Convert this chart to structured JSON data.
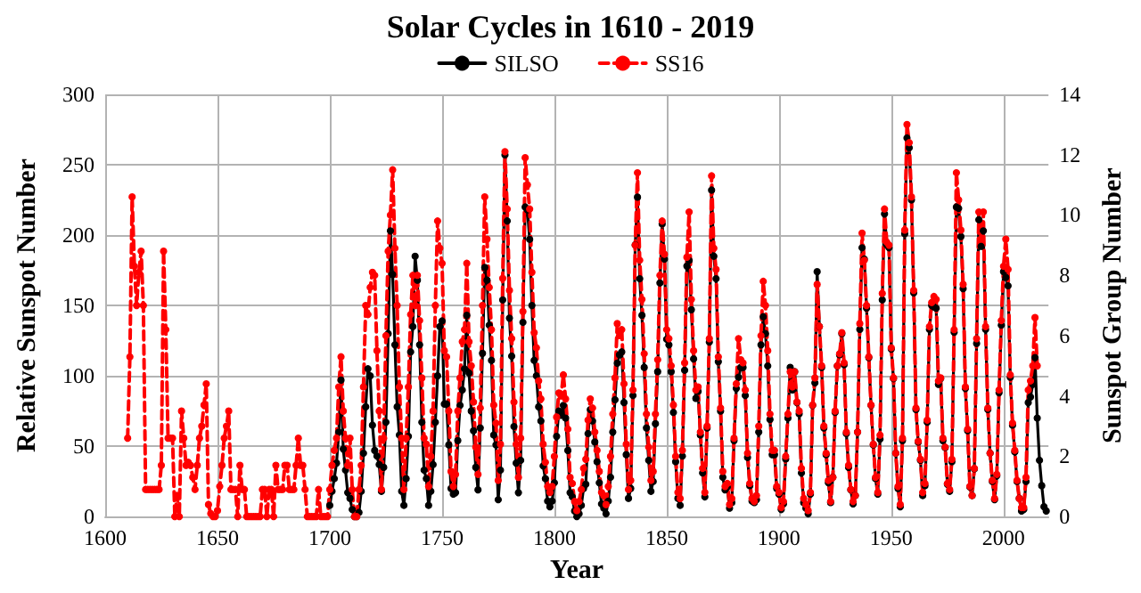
{
  "chart_data": {
    "type": "line",
    "title": "Solar Cycles in 1610 - 2019",
    "xlabel": "Year",
    "ylabel": "Relative Sunspot Number",
    "y2label": "Sunspot Group Number",
    "x": [
      1610,
      1611,
      1612,
      1613,
      1614,
      1615,
      1616,
      1617,
      1618,
      1619,
      1620,
      1621,
      1622,
      1623,
      1624,
      1625,
      1626,
      1627,
      1628,
      1629,
      1630,
      1631,
      1632,
      1633,
      1634,
      1635,
      1636,
      1637,
      1638,
      1639,
      1640,
      1641,
      1642,
      1643,
      1644,
      1645,
      1646,
      1647,
      1648,
      1649,
      1650,
      1651,
      1652,
      1653,
      1654,
      1655,
      1656,
      1657,
      1658,
      1659,
      1660,
      1661,
      1662,
      1663,
      1664,
      1665,
      1666,
      1667,
      1668,
      1669,
      1670,
      1671,
      1672,
      1673,
      1674,
      1675,
      1676,
      1677,
      1678,
      1679,
      1680,
      1681,
      1682,
      1683,
      1684,
      1685,
      1686,
      1687,
      1688,
      1689,
      1690,
      1691,
      1692,
      1693,
      1694,
      1695,
      1696,
      1697,
      1698,
      1699,
      1700,
      1701,
      1702,
      1703,
      1704,
      1705,
      1706,
      1707,
      1708,
      1709,
      1710,
      1711,
      1712,
      1713,
      1714,
      1715,
      1716,
      1717,
      1718,
      1719,
      1720,
      1721,
      1722,
      1723,
      1724,
      1725,
      1726,
      1727,
      1728,
      1729,
      1730,
      1731,
      1732,
      1733,
      1734,
      1735,
      1736,
      1737,
      1738,
      1739,
      1740,
      1741,
      1742,
      1743,
      1744,
      1745,
      1746,
      1747,
      1748,
      1749,
      1750,
      1751,
      1752,
      1753,
      1754,
      1755,
      1756,
      1757,
      1758,
      1759,
      1760,
      1761,
      1762,
      1763,
      1764,
      1765,
      1766,
      1767,
      1768,
      1769,
      1770,
      1771,
      1772,
      1773,
      1774,
      1775,
      1776,
      1777,
      1778,
      1779,
      1780,
      1781,
      1782,
      1783,
      1784,
      1785,
      1786,
      1787,
      1788,
      1789,
      1790,
      1791,
      1792,
      1793,
      1794,
      1795,
      1796,
      1797,
      1798,
      1799,
      1800,
      1801,
      1802,
      1803,
      1804,
      1805,
      1806,
      1807,
      1808,
      1809,
      1810,
      1811,
      1812,
      1813,
      1814,
      1815,
      1816,
      1817,
      1818,
      1819,
      1820,
      1821,
      1822,
      1823,
      1824,
      1825,
      1826,
      1827,
      1828,
      1829,
      1830,
      1831,
      1832,
      1833,
      1834,
      1835,
      1836,
      1837,
      1838,
      1839,
      1840,
      1841,
      1842,
      1843,
      1844,
      1845,
      1846,
      1847,
      1848,
      1849,
      1850,
      1851,
      1852,
      1853,
      1854,
      1855,
      1856,
      1857,
      1858,
      1859,
      1860,
      1861,
      1862,
      1863,
      1864,
      1865,
      1866,
      1867,
      1868,
      1869,
      1870,
      1871,
      1872,
      1873,
      1874,
      1875,
      1876,
      1877,
      1878,
      1879,
      1880,
      1881,
      1882,
      1883,
      1884,
      1885,
      1886,
      1887,
      1888,
      1889,
      1890,
      1891,
      1892,
      1893,
      1894,
      1895,
      1896,
      1897,
      1898,
      1899,
      1900,
      1901,
      1902,
      1903,
      1904,
      1905,
      1906,
      1907,
      1908,
      1909,
      1910,
      1911,
      1912,
      1913,
      1914,
      1915,
      1916,
      1917,
      1918,
      1919,
      1920,
      1921,
      1922,
      1923,
      1924,
      1925,
      1926,
      1927,
      1928,
      1929,
      1930,
      1931,
      1932,
      1933,
      1934,
      1935,
      1936,
      1937,
      1938,
      1939,
      1940,
      1941,
      1942,
      1943,
      1944,
      1945,
      1946,
      1947,
      1948,
      1949,
      1950,
      1951,
      1952,
      1953,
      1954,
      1955,
      1956,
      1957,
      1958,
      1959,
      1960,
      1961,
      1962,
      1963,
      1964,
      1965,
      1966,
      1967,
      1968,
      1969,
      1970,
      1971,
      1972,
      1973,
      1974,
      1975,
      1976,
      1977,
      1978,
      1979,
      1980,
      1981,
      1982,
      1983,
      1984,
      1985,
      1986,
      1987,
      1988,
      1989,
      1990,
      1991,
      1992,
      1993,
      1994,
      1995,
      1996,
      1997,
      1998,
      1999,
      2000,
      2001,
      2002,
      2003,
      2004,
      2005,
      2006,
      2007,
      2008,
      2009,
      2010,
      2011,
      2012,
      2013,
      2014,
      2015,
      2016,
      2017,
      2018,
      2019
    ],
    "xlim": [
      1600,
      2020
    ],
    "xticks": [
      1600,
      1650,
      1700,
      1750,
      1800,
      1850,
      1900,
      1950,
      2000
    ],
    "ylim": [
      0,
      300
    ],
    "yticks": [
      0,
      50,
      100,
      150,
      200,
      250,
      300
    ],
    "y2lim": [
      0,
      14
    ],
    "y2ticks": [
      0,
      2,
      4,
      6,
      8,
      10,
      12,
      14
    ],
    "grid": true,
    "legend": "top",
    "series": [
      {
        "name": "SILSO",
        "color": "#000000",
        "marker": "circle",
        "line_style": "solid",
        "values": [
          null,
          null,
          null,
          null,
          null,
          null,
          null,
          null,
          null,
          null,
          null,
          null,
          null,
          null,
          null,
          null,
          null,
          null,
          null,
          null,
          null,
          null,
          null,
          null,
          null,
          null,
          null,
          null,
          null,
          null,
          null,
          null,
          null,
          null,
          null,
          null,
          null,
          null,
          null,
          null,
          null,
          null,
          null,
          null,
          null,
          null,
          null,
          null,
          null,
          null,
          null,
          null,
          null,
          null,
          null,
          null,
          null,
          null,
          null,
          null,
          null,
          null,
          null,
          null,
          null,
          null,
          null,
          null,
          null,
          null,
          null,
          null,
          null,
          null,
          null,
          null,
          null,
          null,
          null,
          null,
          null,
          null,
          null,
          null,
          null,
          null,
          null,
          null,
          null,
          null,
          8,
          18,
          27,
          38,
          60,
          97,
          48,
          33,
          17,
          13,
          5,
          0,
          0,
          3,
          18,
          45,
          78,
          105,
          100,
          65,
          47,
          43,
          37,
          18,
          35,
          67,
          130,
          203,
          172,
          122,
          78,
          58,
          18,
          8,
          27,
          57,
          117,
          135,
          185,
          168,
          122,
          67,
          33,
          27,
          8,
          18,
          37,
          67,
          100,
          135,
          139,
          80,
          80,
          51,
          20,
          16,
          17,
          54,
          79,
          90,
          105,
          143,
          102,
          75,
          61,
          35,
          19,
          63,
          116,
          177,
          168,
          136,
          111,
          58,
          51,
          12,
          33,
          154,
          257,
          210,
          141,
          114,
          64,
          38,
          17,
          40,
          138,
          220,
          218,
          197,
          150,
          111,
          100,
          78,
          68,
          36,
          27,
          11,
          7,
          11,
          24,
          57,
          75,
          72,
          79,
          70,
          47,
          17,
          14,
          4,
          0,
          2,
          8,
          20,
          23,
          59,
          76,
          68,
          53,
          39,
          24,
          9,
          6,
          2,
          11,
          28,
          60,
          83,
          109,
          115,
          117,
          81,
          44,
          13,
          20,
          86,
          193,
          227,
          169,
          143,
          106,
          63,
          40,
          18,
          25,
          66,
          103,
          166,
          208,
          183,
          126,
          122,
          103,
          74,
          39,
          13,
          8,
          43,
          104,
          178,
          182,
          147,
          112,
          84,
          89,
          58,
          31,
          14,
          63,
          124,
          232,
          185,
          169,
          110,
          75,
          28,
          19,
          21,
          6,
          10,
          54,
          91,
          99,
          106,
          106,
          86,
          42,
          22,
          11,
          10,
          12,
          60,
          122,
          142,
          130,
          107,
          69,
          44,
          44,
          20,
          16,
          5,
          9,
          41,
          70,
          106,
          90,
          103,
          81,
          73,
          31,
          10,
          6,
          2,
          16,
          79,
          95,
          174,
          135,
          106,
          63,
          44,
          24,
          10,
          28,
          74,
          107,
          115,
          130,
          108,
          59,
          35,
          19,
          9,
          15,
          60,
          133,
          191,
          183,
          148,
          113,
          79,
          51,
          27,
          16,
          55,
          154,
          215,
          193,
          191,
          119,
          98,
          45,
          20,
          7,
          54,
          201,
          269,
          262,
          225,
          159,
          76,
          53,
          40,
          15,
          22,
          67,
          133,
          150,
          149,
          148,
          94,
          98,
          54,
          49,
          23,
          18,
          39,
          131,
          220,
          219,
          199,
          162,
          91,
          61,
          21,
          15,
          34,
          123,
          211,
          192,
          203,
          133,
          76,
          45,
          25,
          12,
          29,
          88,
          136,
          174,
          170,
          164,
          99,
          65,
          46,
          25,
          13,
          4,
          5,
          25,
          81,
          85,
          94,
          113,
          70,
          40,
          22,
          7,
          4
        ]
      },
      {
        "name": "SS16",
        "color": "#ff0000",
        "marker": "circle",
        "line_style": "dashed",
        "axis": "y2",
        "values": [
          2.6,
          5.3,
          10.6,
          8.3,
          7.0,
          8.1,
          8.8,
          7.0,
          0.9,
          0.9,
          0.9,
          0.9,
          0.9,
          0.9,
          0.9,
          1.7,
          8.8,
          6.2,
          2.6,
          2.6,
          2.6,
          0,
          0.7,
          0,
          3.5,
          2.6,
          1.7,
          1.8,
          1.7,
          1.3,
          0.9,
          1.7,
          2.6,
          3.0,
          3.7,
          4.4,
          0.4,
          0.1,
          0,
          0,
          0.2,
          1.0,
          1.7,
          2.6,
          3.0,
          3.5,
          0.9,
          0.9,
          0.9,
          0,
          1.7,
          0.9,
          0.9,
          0,
          0,
          0,
          0,
          0,
          0,
          0,
          0.9,
          0.9,
          0,
          0.9,
          0.9,
          0,
          1.7,
          0.9,
          0.9,
          0.9,
          1.7,
          1.7,
          0.9,
          0.9,
          0.9,
          1.7,
          2.6,
          1.7,
          1.7,
          0.9,
          0,
          0,
          0,
          0,
          0,
          0.9,
          0,
          0,
          0,
          0,
          0.9,
          1.7,
          2.2,
          2.6,
          4.3,
          5.3,
          3.5,
          2.6,
          1.7,
          2.6,
          0.9,
          0,
          0,
          0.9,
          1.7,
          4.3,
          7.0,
          6.7,
          7.6,
          8.1,
          8.0,
          5.5,
          3.5,
          0.9,
          2.6,
          6.0,
          8.8,
          10.0,
          11.5,
          8.9,
          7.0,
          4.3,
          2.6,
          0.9,
          2.6,
          4.3,
          6.7,
          8.0,
          7.0,
          8.0,
          6.5,
          4.6,
          2.6,
          2.4,
          1.0,
          2.0,
          3.5,
          7.0,
          9.8,
          8.9,
          8.4,
          5.5,
          5.3,
          3.5,
          1.5,
          1.0,
          1.4,
          3.5,
          4.6,
          5.8,
          6.2,
          8.4,
          5.8,
          5.0,
          3.8,
          2.3,
          1.4,
          3.6,
          7.0,
          10.6,
          9.2,
          7.6,
          6.2,
          3.7,
          3.1,
          1.2,
          2.4,
          7.9,
          12.1,
          10.2,
          7.5,
          5.9,
          3.8,
          2.4,
          1.3,
          2.6,
          6.8,
          11.9,
          11.0,
          10.2,
          8.1,
          6.1,
          5.6,
          4.5,
          3.9,
          2.4,
          1.8,
          1.0,
          0.8,
          1.0,
          2.0,
          3.3,
          4.1,
          4.0,
          4.7,
          3.9,
          2.9,
          1.3,
          1.1,
          0.5,
          0.2,
          0.5,
          0.9,
          1.6,
          1.9,
          3.2,
          3.9,
          3.6,
          2.8,
          2.2,
          1.5,
          0.8,
          0.7,
          0.4,
          1.0,
          2.0,
          3.4,
          4.6,
          6.4,
          6.0,
          6.2,
          4.4,
          2.4,
          0.9,
          1.2,
          4.2,
          9.0,
          11.4,
          8.5,
          7.2,
          5.4,
          3.4,
          2.3,
          1.2,
          1.5,
          3.4,
          5.2,
          8.0,
          9.8,
          8.7,
          6.2,
          5.9,
          5.0,
          3.7,
          2.0,
          0.8,
          0.6,
          2.2,
          5.1,
          8.6,
          10.1,
          7.2,
          5.5,
          4.2,
          4.3,
          2.8,
          1.6,
          0.8,
          3.0,
          5.9,
          11.3,
          8.9,
          8.2,
          5.3,
          3.6,
          1.5,
          1.0,
          1.1,
          0.4,
          0.6,
          2.6,
          4.4,
          5.9,
          5.2,
          5.1,
          4.2,
          2.1,
          1.1,
          0.6,
          0.5,
          0.7,
          3.0,
          6.0,
          7.8,
          7.0,
          5.5,
          3.4,
          2.2,
          2.2,
          1.0,
          0.8,
          0.3,
          0.5,
          2.0,
          3.4,
          4.8,
          4.3,
          4.8,
          3.8,
          3.5,
          1.6,
          0.6,
          0.4,
          0.2,
          0.8,
          3.7,
          4.6,
          7.7,
          6.3,
          5.0,
          3.0,
          2.1,
          1.2,
          0.5,
          1.3,
          3.5,
          5.0,
          5.4,
          6.1,
          5.1,
          2.8,
          1.7,
          0.9,
          0.5,
          0.7,
          2.8,
          6.4,
          9.4,
          8.5,
          7.0,
          5.3,
          3.7,
          2.4,
          1.3,
          0.8,
          2.7,
          7.4,
          10.2,
          9.1,
          9.0,
          5.6,
          4.6,
          2.1,
          1.0,
          0.4,
          2.6,
          9.5,
          13.0,
          12.4,
          10.6,
          7.5,
          3.6,
          2.5,
          1.9,
          0.8,
          1.1,
          3.2,
          6.3,
          7.1,
          7.3,
          7.2,
          4.5,
          4.6,
          2.6,
          2.3,
          1.1,
          0.9,
          1.9,
          6.2,
          11.4,
          10.5,
          9.5,
          7.7,
          4.3,
          2.9,
          1.0,
          0.7,
          1.6,
          5.9,
          10.1,
          9.2,
          10.1,
          6.3,
          3.6,
          2.1,
          1.2,
          0.6,
          1.4,
          4.2,
          6.5,
          8.3,
          9.2,
          8.2,
          4.7,
          3.1,
          2.2,
          1.2,
          0.6,
          0.3,
          0.3,
          1.3,
          4.2,
          4.5,
          5.0,
          6.6,
          5.0,
          null,
          null,
          null,
          null
        ]
      }
    ]
  }
}
